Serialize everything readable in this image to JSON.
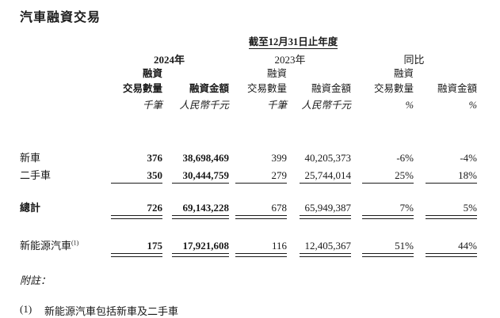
{
  "page": {
    "title": "汽車融資交易"
  },
  "table": {
    "period_header": "截至12月31日止年度",
    "col_groups": [
      {
        "year": "2024年"
      },
      {
        "year": "2023年"
      },
      {
        "year": "同比"
      }
    ],
    "sub_headers": {
      "financing": "融資",
      "volume": "交易數量",
      "amount": "融資金額"
    },
    "units": {
      "thousand": "千筆",
      "rmb_thousand": "人民幣千元",
      "percent": "%"
    },
    "rows": [
      {
        "label": "新車",
        "values": [
          "376",
          "38,698,469",
          "399",
          "40,205,373",
          "-6%",
          "-4%"
        ]
      },
      {
        "label": "二手車",
        "values": [
          "350",
          "30,444,759",
          "279",
          "25,744,014",
          "25%",
          "18%"
        ]
      },
      {
        "label": "總計",
        "values": [
          "726",
          "69,143,228",
          "678",
          "65,949,387",
          "7%",
          "5%"
        ]
      },
      {
        "label": "新能源汽車",
        "sup": "(1)",
        "values": [
          "175",
          "17,921,608",
          "116",
          "12,405,367",
          "51%",
          "44%"
        ]
      }
    ]
  },
  "notes": {
    "heading": "附註：",
    "items": [
      {
        "marker": "(1)",
        "text": "新能源汽車包括新車及二手車"
      }
    ]
  }
}
